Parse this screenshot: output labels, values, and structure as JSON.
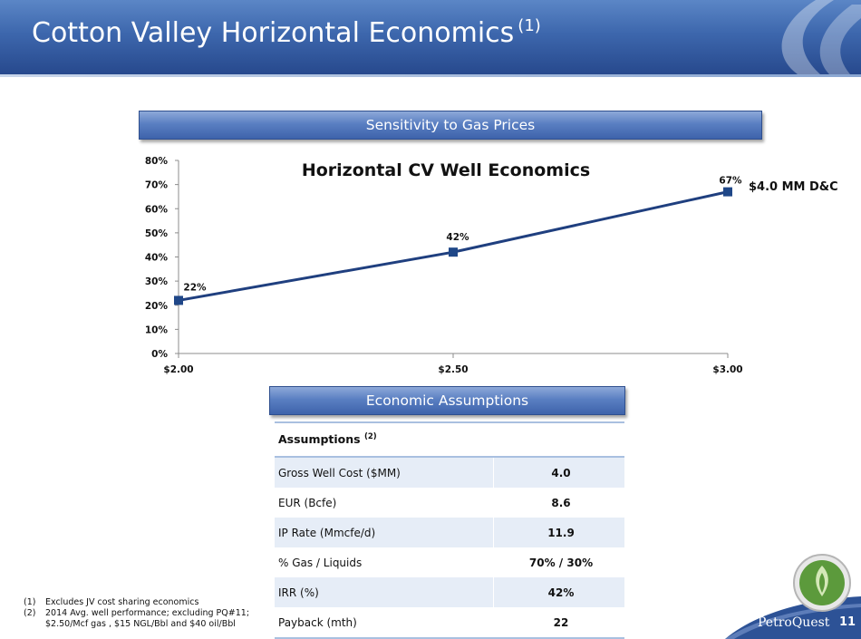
{
  "header": {
    "title": "Cotton Valley Horizontal Economics",
    "title_sup": "(1)"
  },
  "colors": {
    "header_blue": "#3d67ad",
    "line": "#1f3f7f",
    "marker": "#1f4788",
    "table_shade": "#e6edf7"
  },
  "sensitivity_banner": "Sensitivity to Gas Prices",
  "assumptions_banner": "Economic Assumptions",
  "chart_data": {
    "type": "line",
    "title": "Horizontal CV Well Economics",
    "x": [
      "$2.00",
      "$2.50",
      "$3.00"
    ],
    "x_values": [
      2.0,
      2.5,
      3.0
    ],
    "y_ticks": [
      "0%",
      "10%",
      "20%",
      "30%",
      "40%",
      "50%",
      "60%",
      "70%",
      "80%"
    ],
    "ylim": [
      0,
      80
    ],
    "xlim": [
      2.0,
      3.0
    ],
    "series": [
      {
        "values": [
          22,
          42,
          67
        ],
        "labels": [
          "22%",
          "42%",
          "67%"
        ]
      }
    ],
    "callout": "$4.0 MM D&C",
    "grid": false
  },
  "table": {
    "header": "Assumptions",
    "header_sup": "(2)",
    "rows": [
      {
        "label": "Gross Well Cost ($MM)",
        "value": "4.0"
      },
      {
        "label": "EUR (Bcfe)",
        "value": "8.6"
      },
      {
        "label": "IP Rate (Mmcfe/d)",
        "value": "11.9"
      },
      {
        "label": "% Gas / Liquids",
        "value": "70% / 30%"
      },
      {
        "label": "IRR (%)",
        "value": "42%"
      },
      {
        "label": "Payback (mth)",
        "value": "22"
      }
    ]
  },
  "footnotes": [
    {
      "num": "(1)",
      "text": "Excludes JV cost sharing economics"
    },
    {
      "num": "(2)",
      "text": "2014 Avg. well performance; excluding PQ#11; $2.50/Mcf gas , $15 NGL/Bbl and $40 oil/Bbl"
    }
  ],
  "footer": {
    "brand": "PetroQuest",
    "page": "11"
  }
}
